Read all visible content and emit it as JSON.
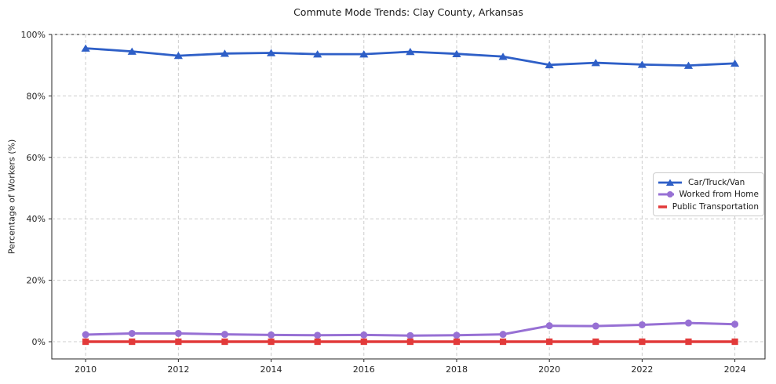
{
  "figure": {
    "background": "#ffffff",
    "axis_color": "#262626",
    "grid_color": "#cccccc",
    "frame_color": "#262626"
  },
  "chart_data": {
    "type": "line",
    "title": "Commute Mode Trends: Clay County, Arkansas",
    "xlabel": "",
    "ylabel": "Percentage of Workers (%)",
    "x": [
      2010,
      2011,
      2012,
      2013,
      2014,
      2015,
      2016,
      2017,
      2018,
      2019,
      2020,
      2021,
      2022,
      2023,
      2024
    ],
    "x_ticks": [
      2010,
      2012,
      2014,
      2016,
      2018,
      2020,
      2022,
      2024
    ],
    "x_tick_labels": [
      "2010",
      "2012",
      "2014",
      "2016",
      "2018",
      "2020",
      "2022",
      "2024"
    ],
    "y_ticks": [
      0,
      20,
      40,
      60,
      80,
      100
    ],
    "y_tick_labels": [
      "0%",
      "20%",
      "40%",
      "60%",
      "80%",
      "100%"
    ],
    "xlim": [
      2009.27,
      2024.65
    ],
    "ylim": [
      -5.6,
      100
    ],
    "grid": "dashed",
    "legend_position": "center-right",
    "series": [
      {
        "name": "Car/Truck/Van",
        "color": "#2e5fc7",
        "marker": "triangle",
        "linewidth": 2.8,
        "values": [
          95.5,
          94.5,
          93.1,
          93.8,
          94.0,
          93.6,
          93.6,
          94.4,
          93.7,
          92.8,
          90.1,
          90.8,
          90.2,
          89.9,
          90.6
        ]
      },
      {
        "name": "Worked from Home",
        "color": "#9770d4",
        "marker": "circle",
        "linewidth": 3.0,
        "values": [
          2.3,
          2.7,
          2.7,
          2.4,
          2.2,
          2.1,
          2.2,
          2.0,
          2.1,
          2.4,
          5.2,
          5.1,
          5.5,
          6.1,
          5.7
        ]
      },
      {
        "name": "Public Transportation",
        "color": "#e23a3a",
        "marker": "square",
        "linewidth": 3.4,
        "values": [
          0.0,
          0.0,
          0.0,
          0.0,
          0.0,
          0.0,
          0.0,
          0.0,
          0.0,
          0.0,
          0.0,
          0.0,
          0.0,
          0.0,
          0.0
        ]
      }
    ]
  }
}
